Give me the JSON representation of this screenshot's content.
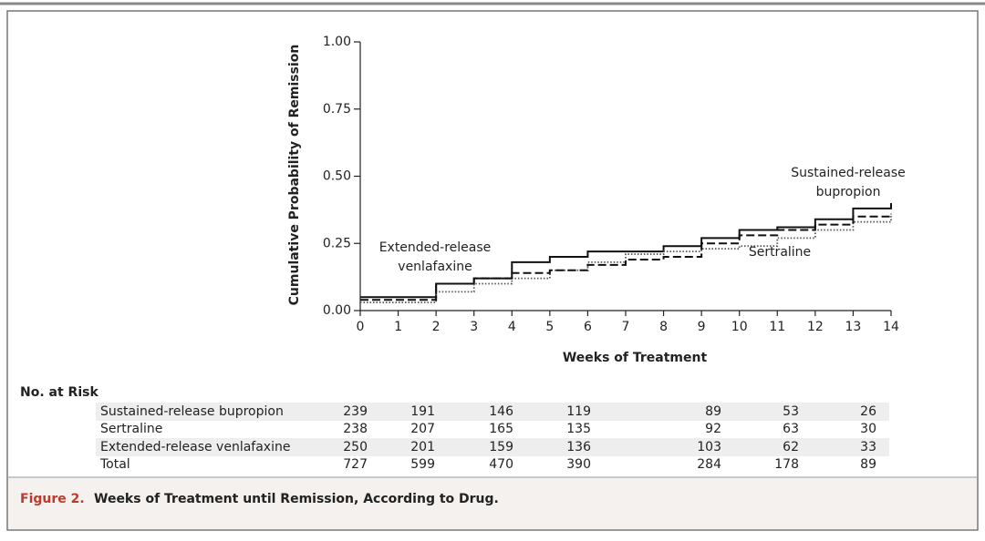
{
  "chart_data": {
    "type": "line",
    "step": true,
    "x_label": "Weeks of Treatment",
    "y_label": "Cumulative Probability of Remission",
    "x": [
      0,
      1,
      2,
      3,
      4,
      5,
      6,
      7,
      8,
      9,
      10,
      11,
      12,
      13,
      14
    ],
    "series": [
      {
        "name": "Sustained-release bupropion",
        "color": "#111111",
        "dash": "solid",
        "values": [
          0.05,
          0.05,
          0.1,
          0.12,
          0.18,
          0.2,
          0.22,
          0.22,
          0.24,
          0.27,
          0.3,
          0.31,
          0.34,
          0.38,
          0.4
        ]
      },
      {
        "name": "Sertraline",
        "color": "#555555",
        "dash": "dotted",
        "values": [
          0.03,
          0.03,
          0.07,
          0.1,
          0.12,
          0.15,
          0.18,
          0.21,
          0.22,
          0.23,
          0.24,
          0.27,
          0.3,
          0.33,
          0.36
        ]
      },
      {
        "name": "Extended-release venlafaxine",
        "color": "#111111",
        "dash": "dashed",
        "values": [
          0.04,
          0.04,
          0.1,
          0.12,
          0.14,
          0.15,
          0.17,
          0.19,
          0.2,
          0.25,
          0.28,
          0.3,
          0.32,
          0.35,
          0.36
        ]
      }
    ],
    "annotations": [
      [
        "Sustained-release",
        "bupropion"
      ],
      [
        "Sertraline"
      ],
      [
        "Extended-release",
        "venlafaxine"
      ]
    ],
    "xlim": [
      0,
      14
    ],
    "xticks": [
      0,
      1,
      2,
      3,
      4,
      5,
      6,
      7,
      8,
      9,
      10,
      11,
      12,
      13,
      14
    ],
    "ylim": [
      0,
      1
    ],
    "yticks": [
      {
        "value": 0,
        "label": "0.00"
      },
      {
        "value": 0.25,
        "label": "0.25"
      },
      {
        "value": 0.5,
        "label": "0.50"
      },
      {
        "value": 0.75,
        "label": "0.75"
      },
      {
        "value": 1,
        "label": "1.00"
      }
    ],
    "grid": false
  },
  "risk_table": {
    "title": "No. at Risk",
    "rows": [
      {
        "name": "Sustained-release bupropion",
        "values": [
          239,
          191,
          146,
          119,
          89,
          53,
          26
        ]
      },
      {
        "name": "Sertraline",
        "values": [
          238,
          207,
          165,
          135,
          92,
          63,
          30
        ]
      },
      {
        "name": "Extended-release venlafaxine",
        "values": [
          250,
          201,
          159,
          136,
          103,
          62,
          33
        ]
      },
      {
        "name": "Total",
        "values": [
          727,
          599,
          470,
          390,
          284,
          178,
          89
        ]
      }
    ]
  },
  "caption": {
    "label": "Figure 2.",
    "text": "Weeks of Treatment until Remission, According to Drug."
  }
}
